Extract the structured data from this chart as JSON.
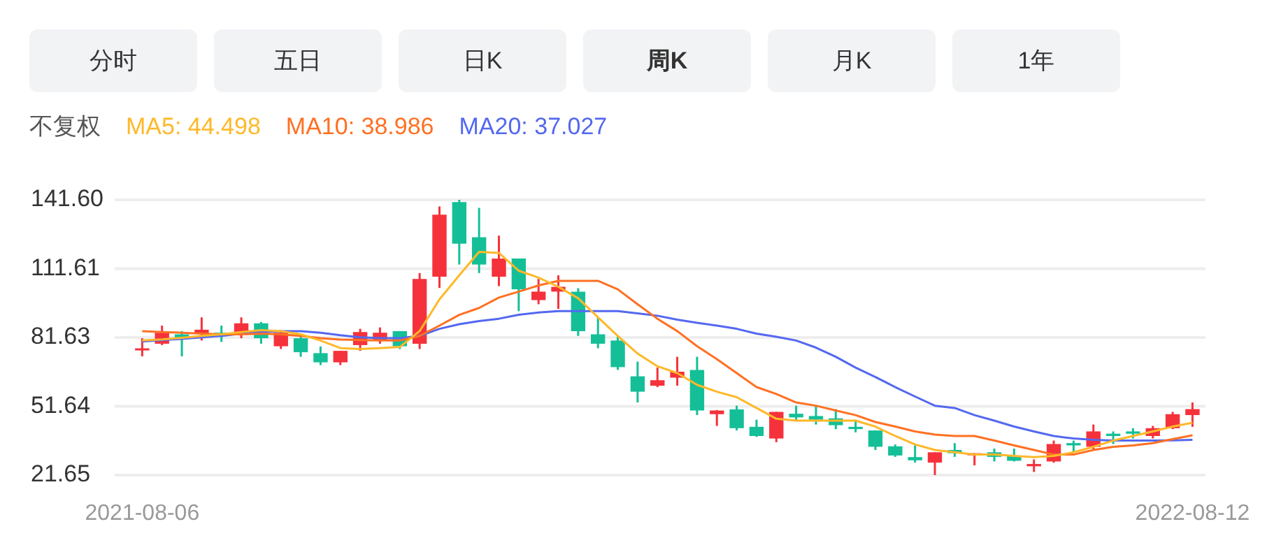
{
  "chart_data": {
    "type": "candlestick",
    "annotations": [
      "分时",
      "五日",
      "日K",
      "周K",
      "月K",
      "1年"
    ],
    "legend_title": "不复权",
    "grid": "y",
    "categories": [
      "2021-08-06",
      null,
      null,
      null,
      null,
      null,
      null,
      null,
      null,
      null,
      null,
      null,
      null,
      null,
      null,
      null,
      null,
      null,
      null,
      null,
      null,
      null,
      null,
      null,
      null,
      null,
      null,
      null,
      null,
      null,
      null,
      null,
      null,
      null,
      null,
      null,
      null,
      null,
      null,
      null,
      null,
      null,
      null,
      null,
      null,
      null,
      null,
      null,
      null,
      null,
      null,
      null,
      null,
      "2022-08-12"
    ],
    "ohlc": [
      [
        76.3,
        81.3,
        73.4,
        76.9
      ],
      [
        78.9,
        86.8,
        78.3,
        83.7
      ],
      [
        83.0,
        84.4,
        73.4,
        81.3
      ],
      [
        83.3,
        90.4,
        80.3,
        85.0
      ],
      [
        83.7,
        86.8,
        79.7,
        82.3
      ],
      [
        83.7,
        90.4,
        81.3,
        87.8
      ],
      [
        87.8,
        88.4,
        78.9,
        81.3
      ],
      [
        77.8,
        84.0,
        76.6,
        83.7
      ],
      [
        81.3,
        83.3,
        73.2,
        75.2
      ],
      [
        74.8,
        77.7,
        69.6,
        70.8
      ],
      [
        70.8,
        75.8,
        69.6,
        75.8
      ],
      [
        78.3,
        85.4,
        75.8,
        84.0
      ],
      [
        80.3,
        86.0,
        78.9,
        83.7
      ],
      [
        84.4,
        84.4,
        76.6,
        77.8
      ],
      [
        78.9,
        109.7,
        76.6,
        107.1
      ],
      [
        108.1,
        138.7,
        103.2,
        135.1
      ],
      [
        140.6,
        141.6,
        113.4,
        122.5
      ],
      [
        125.3,
        138.1,
        109.7,
        113.4
      ],
      [
        108.1,
        126.0,
        104.0,
        116.0
      ],
      [
        116.0,
        116.0,
        93.1,
        102.6
      ],
      [
        97.9,
        107.1,
        96.1,
        101.6
      ],
      [
        101.6,
        108.7,
        94.1,
        103.7
      ],
      [
        101.6,
        103.1,
        82.3,
        84.4
      ],
      [
        83.0,
        90.4,
        76.9,
        78.9
      ],
      [
        80.3,
        82.3,
        67.5,
        68.7
      ],
      [
        64.7,
        71.1,
        53.3,
        58.0
      ],
      [
        60.6,
        68.5,
        60.0,
        63.0
      ],
      [
        64.1,
        73.2,
        60.6,
        66.7
      ],
      [
        67.5,
        73.2,
        47.8,
        49.8
      ],
      [
        48.2,
        50.0,
        43.1,
        49.8
      ],
      [
        50.3,
        51.9,
        41.1,
        42.1
      ],
      [
        42.7,
        45.8,
        38.3,
        38.7
      ],
      [
        37.6,
        49.2,
        36.0,
        49.2
      ],
      [
        48.4,
        51.9,
        45.4,
        46.8
      ],
      [
        47.4,
        51.9,
        43.7,
        45.8
      ],
      [
        46.4,
        50.4,
        41.7,
        43.4
      ],
      [
        42.7,
        45.8,
        40.3,
        41.7
      ],
      [
        41.1,
        41.1,
        32.6,
        34.0
      ],
      [
        34.2,
        35.0,
        29.6,
        30.2
      ],
      [
        29.5,
        34.6,
        27.1,
        28.1
      ],
      [
        27.1,
        31.6,
        21.65,
        31.6
      ],
      [
        32.6,
        35.6,
        29.6,
        31.2
      ],
      [
        30.9,
        31.2,
        25.9,
        31.2
      ],
      [
        31.6,
        33.2,
        27.6,
        29.6
      ],
      [
        29.9,
        33.2,
        27.6,
        27.9
      ],
      [
        25.5,
        28.5,
        23.0,
        26.5
      ],
      [
        27.6,
        36.7,
        27.1,
        35.2
      ],
      [
        35.6,
        36.7,
        31.6,
        34.6
      ],
      [
        34.0,
        43.7,
        32.6,
        40.7
      ],
      [
        39.7,
        40.7,
        35.2,
        38.7
      ],
      [
        40.7,
        42.1,
        37.6,
        39.7
      ],
      [
        38.7,
        43.1,
        37.6,
        42.1
      ],
      [
        42.1,
        49.2,
        41.7,
        48.2
      ],
      [
        47.8,
        53.3,
        42.7,
        50.4
      ]
    ],
    "colors": [
      "#f5323b",
      "#f5323b",
      "#14bf98",
      "#f5323b",
      "#14bf98",
      "#f5323b",
      "#14bf98",
      "#f5323b",
      "#14bf98",
      "#14bf98",
      "#f5323b",
      "#f5323b",
      "#f5323b",
      "#14bf98",
      "#f5323b",
      "#f5323b",
      "#14bf98",
      "#14bf98",
      "#f5323b",
      "#14bf98",
      "#f5323b",
      "#f5323b",
      "#14bf98",
      "#14bf98",
      "#14bf98",
      "#14bf98",
      "#f5323b",
      "#f5323b",
      "#14bf98",
      "#f5323b",
      "#14bf98",
      "#14bf98",
      "#f5323b",
      "#14bf98",
      "#14bf98",
      "#14bf98",
      "#14bf98",
      "#14bf98",
      "#14bf98",
      "#14bf98",
      "#f5323b",
      "#14bf98",
      "#f5323b",
      "#14bf98",
      "#14bf98",
      "#f5323b",
      "#f5323b",
      "#14bf98",
      "#f5323b",
      "#14bf98",
      "#14bf98",
      "#f5323b",
      "#f5323b",
      "#f5323b"
    ],
    "series": [
      {
        "name": "MA5: 44.498",
        "type": "line",
        "color": "#ffb829",
        "values": [
          80.3,
          80.8,
          81.5,
          82.3,
          83.0,
          84.0,
          84.8,
          84.4,
          83.0,
          80.3,
          77.0,
          76.6,
          77.0,
          77.5,
          84.4,
          98.2,
          108.7,
          118.9,
          118.5,
          110.7,
          107.7,
          103.7,
          98.7,
          90.4,
          82.3,
          74.6,
          69.1,
          66.1,
          61.0,
          58.0,
          55.6,
          50.9,
          46.2,
          45.4,
          45.4,
          45.4,
          45.4,
          42.8,
          38.7,
          35.0,
          32.6,
          31.6,
          30.6,
          30.6,
          30.0,
          29.5,
          30.0,
          31.6,
          34.0,
          36.7,
          38.7,
          40.7,
          42.8,
          44.5
        ]
      },
      {
        "name": "MA10: 38.986",
        "type": "line",
        "color": "#ff7022",
        "values": [
          84.4,
          84.0,
          83.7,
          83.3,
          83.0,
          83.0,
          83.3,
          83.0,
          82.3,
          81.3,
          80.7,
          80.5,
          80.3,
          80.3,
          82.3,
          86.8,
          91.5,
          94.5,
          99.0,
          101.6,
          104.3,
          106.3,
          106.3,
          106.3,
          102.6,
          96.1,
          89.8,
          84.4,
          77.8,
          72.2,
          66.1,
          60.0,
          57.0,
          53.3,
          51.9,
          49.8,
          47.8,
          44.8,
          42.8,
          40.7,
          39.3,
          38.7,
          38.7,
          36.7,
          34.6,
          32.6,
          30.6,
          30.6,
          32.6,
          34.0,
          34.6,
          35.6,
          37.3,
          39.0
        ]
      },
      {
        "name": "MA20: 37.027",
        "type": "line",
        "color": "#5468f0",
        "values": [
          79.9,
          80.5,
          81.0,
          81.7,
          82.3,
          83.3,
          84.0,
          84.4,
          84.4,
          83.7,
          82.6,
          81.7,
          81.3,
          81.3,
          82.3,
          85.4,
          87.4,
          88.8,
          89.8,
          91.5,
          92.5,
          93.1,
          93.1,
          93.1,
          93.1,
          92.1,
          91.1,
          89.4,
          88.0,
          86.8,
          85.4,
          83.3,
          81.9,
          80.3,
          77.2,
          73.2,
          68.5,
          64.4,
          60.0,
          55.9,
          51.9,
          50.9,
          47.8,
          45.4,
          42.8,
          40.7,
          38.7,
          37.6,
          37.0,
          36.7,
          36.7,
          36.7,
          36.8,
          37.0
        ]
      }
    ],
    "ylim": [
      21.65,
      141.6
    ],
    "yticks": [
      21.65,
      51.64,
      81.63,
      111.61,
      {
        "value": 141.6,
        "label": "141.60"
      }
    ],
    "marker": "none"
  }
}
